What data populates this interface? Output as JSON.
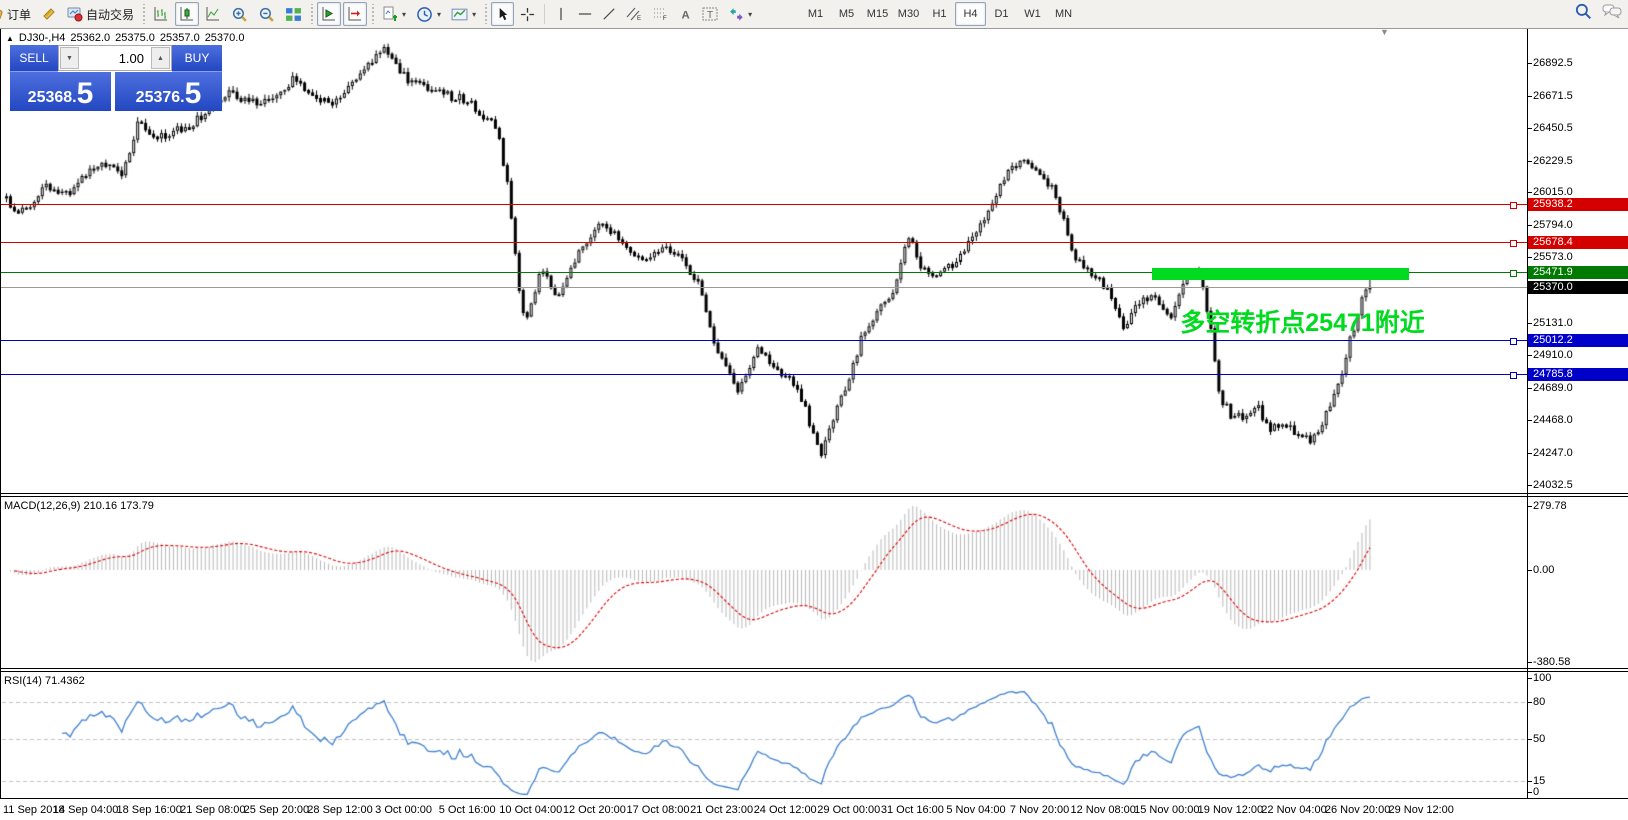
{
  "toolbar": {
    "order_label": "订单",
    "auto_trading_label": "自动交易",
    "timeframes": [
      "M1",
      "M5",
      "M15",
      "M30",
      "H1",
      "H4",
      "D1",
      "W1",
      "MN"
    ],
    "active_timeframe": "H4"
  },
  "chart_header": {
    "symbol_period": "DJ30-,H4",
    "open": "25362.0",
    "high": "25375.0",
    "low": "25357.0",
    "close": "25370.0"
  },
  "trade_panel": {
    "sell_label": "SELL",
    "buy_label": "BUY",
    "volume": "1.00",
    "sell_price_main": "25368",
    "sell_price_pip": "5",
    "buy_price_main": "25376",
    "buy_price_pip": "5"
  },
  "chart_data": {
    "type": "candlestick",
    "symbol": "DJ30-",
    "timeframe": "H4",
    "price_axis_ticks": [
      "26892.5",
      "26671.5",
      "26450.5",
      "26229.5",
      "26015.0",
      "25794.0",
      "25573.0",
      "25131.0",
      "24910.0",
      "24689.0",
      "24468.0",
      "24247.0",
      "24032.5"
    ],
    "price_range": {
      "max": 27116,
      "min": 23982
    },
    "hlines": [
      {
        "price": 25938.2,
        "label": "25938.2",
        "color": "#d40000"
      },
      {
        "price": 25678.4,
        "label": "25678.4",
        "color": "#d40000"
      },
      {
        "price": 25471.9,
        "label": "25471.9",
        "color": "#007a00"
      },
      {
        "price": 25012.2,
        "label": "25012.2",
        "color": "#0000c8"
      },
      {
        "price": 24785.8,
        "label": "24785.8",
        "color": "#0000c8"
      }
    ],
    "current_price": {
      "price": 25370.0,
      "label": "25370.0",
      "badge_color": "#000000",
      "line_color": "#999999"
    },
    "rect_annotation": {
      "x1_frac": 0.841,
      "x2_frac": 1.03,
      "price_top": 25502,
      "price_bottom": 25420,
      "color": "#00db1f"
    },
    "text_annotation": {
      "text": "多空转折点25471附近",
      "x_frac": 0.862,
      "price": 25264,
      "color": "#00db1f"
    },
    "candle_colors": {
      "up_fill": "#ffffff",
      "down_fill": "#000000",
      "outline": "#000000"
    },
    "price_path": [
      [
        0.0,
        25960
      ],
      [
        0.012,
        25880
      ],
      [
        0.03,
        26060
      ],
      [
        0.044,
        26000
      ],
      [
        0.058,
        26140
      ],
      [
        0.07,
        26240
      ],
      [
        0.085,
        26130
      ],
      [
        0.096,
        26480
      ],
      [
        0.112,
        26400
      ],
      [
        0.135,
        26470
      ],
      [
        0.163,
        26700
      ],
      [
        0.187,
        26600
      ],
      [
        0.21,
        26780
      ],
      [
        0.238,
        26610
      ],
      [
        0.262,
        26860
      ],
      [
        0.279,
        26990
      ],
      [
        0.292,
        26800
      ],
      [
        0.312,
        26700
      ],
      [
        0.338,
        26640
      ],
      [
        0.36,
        26450
      ],
      [
        0.368,
        26050
      ],
      [
        0.3755,
        25400
      ],
      [
        0.381,
        25120
      ],
      [
        0.392,
        25480
      ],
      [
        0.406,
        25300
      ],
      [
        0.42,
        25610
      ],
      [
        0.436,
        25820
      ],
      [
        0.452,
        25690
      ],
      [
        0.466,
        25560
      ],
      [
        0.48,
        25640
      ],
      [
        0.495,
        25580
      ],
      [
        0.508,
        25380
      ],
      [
        0.521,
        24950
      ],
      [
        0.536,
        24680
      ],
      [
        0.551,
        24940
      ],
      [
        0.565,
        24820
      ],
      [
        0.58,
        24700
      ],
      [
        0.5905,
        24420
      ],
      [
        0.598,
        24250
      ],
      [
        0.606,
        24480
      ],
      [
        0.616,
        24700
      ],
      [
        0.627,
        25020
      ],
      [
        0.641,
        25230
      ],
      [
        0.652,
        25380
      ],
      [
        0.6615,
        25720
      ],
      [
        0.672,
        25500
      ],
      [
        0.684,
        25450
      ],
      [
        0.695,
        25530
      ],
      [
        0.707,
        25700
      ],
      [
        0.72,
        25890
      ],
      [
        0.7335,
        26140
      ],
      [
        0.744,
        26230
      ],
      [
        0.757,
        26150
      ],
      [
        0.766,
        26060
      ],
      [
        0.7735,
        25890
      ],
      [
        0.782,
        25600
      ],
      [
        0.795,
        25480
      ],
      [
        0.808,
        25350
      ],
      [
        0.8195,
        25090
      ],
      [
        0.83,
        25270
      ],
      [
        0.8415,
        25330
      ],
      [
        0.853,
        25170
      ],
      [
        0.866,
        25430
      ],
      [
        0.8755,
        25480
      ],
      [
        0.883,
        25100
      ],
      [
        0.89,
        24640
      ],
      [
        0.9,
        24480
      ],
      [
        0.9095,
        24500
      ],
      [
        0.918,
        24550
      ],
      [
        0.9265,
        24420
      ],
      [
        0.936,
        24460
      ],
      [
        0.9435,
        24400
      ],
      [
        0.951,
        24360
      ],
      [
        0.9585,
        24340
      ],
      [
        0.966,
        24480
      ],
      [
        0.9725,
        24620
      ],
      [
        0.979,
        24760
      ],
      [
        0.9855,
        25020
      ],
      [
        0.99,
        25110
      ],
      [
        0.9945,
        25330
      ],
      [
        1.0,
        25430
      ]
    ],
    "last_close": 25370.0,
    "macd": {
      "label": "MACD(12,26,9)",
      "values_label": "210.16 173.79",
      "params": [
        12,
        26,
        9
      ],
      "axis": [
        "279.78",
        "0.00",
        "-380.58"
      ],
      "histogram_color": "#b8b8b8",
      "signal_color": "#e00000"
    },
    "rsi": {
      "label": "RSI(14)",
      "value_label": "71.4362",
      "period": 14,
      "axis": [
        "100",
        "80",
        "50",
        "15",
        "0"
      ],
      "levels": [
        80,
        50,
        15
      ],
      "line_color": "#3f80d0",
      "level_color": "#c0c0c0"
    },
    "time_axis": [
      "11 Sep 2018",
      "14 Sep 04:00",
      "18 Sep 16:00",
      "21 Sep 08:00",
      "25 Sep 20:00",
      "28 Sep 12:00",
      "3 Oct 00:00",
      "5 Oct 16:00",
      "10 Oct 04:00",
      "12 Oct 20:00",
      "17 Oct 08:00",
      "21 Oct 23:00",
      "24 Oct 12:00",
      "29 Oct 00:00",
      "31 Oct 16:00",
      "5 Nov 04:00",
      "7 Nov 20:00",
      "12 Nov 08:00",
      "15 Nov 00:00",
      "19 Nov 12:00",
      "22 Nov 04:00",
      "26 Nov 20:00",
      "29 Nov 12:00"
    ]
  }
}
